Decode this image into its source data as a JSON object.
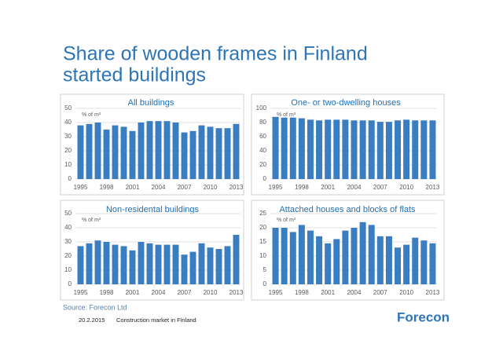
{
  "title": [
    "Share of wooden frames in Finland",
    "started buildings"
  ],
  "source": "Source: Forecon Ltd",
  "footer": {
    "date": "20.2.2015",
    "text": "Construction market in Finland",
    "logo": "Forecon"
  },
  "chart_data": [
    {
      "type": "bar",
      "title": "All buildings",
      "unit_label": "% of m³",
      "color": "#3a7dc0",
      "grid": true,
      "categories": [
        "1995",
        null,
        null,
        "1998",
        null,
        null,
        "2001",
        null,
        null,
        "2004",
        null,
        null,
        "2007",
        null,
        null,
        "2010",
        null,
        null,
        "2013"
      ],
      "values": [
        38,
        39,
        40,
        35,
        38,
        37,
        34,
        40,
        41,
        41,
        41,
        40,
        33,
        34,
        38,
        37,
        36,
        36,
        39
      ],
      "ylim": [
        0,
        50
      ],
      "yticks": [
        0,
        10,
        20,
        30,
        40,
        50
      ]
    },
    {
      "type": "bar",
      "title": "One- or two-dwelling houses",
      "unit_label": "% of m³",
      "color": "#3a7dc0",
      "grid": true,
      "categories": [
        "1995",
        null,
        null,
        "1998",
        null,
        null,
        "2001",
        null,
        null,
        "2004",
        null,
        null,
        "2007",
        null,
        null,
        "2010",
        null,
        null,
        "2013"
      ],
      "values": [
        88,
        87,
        87,
        86,
        84,
        83,
        84,
        84,
        84,
        83,
        83,
        83,
        81,
        81,
        83,
        84,
        83,
        83,
        83
      ],
      "ylim": [
        0,
        100
      ],
      "yticks": [
        0,
        20,
        40,
        60,
        80,
        100
      ]
    },
    {
      "type": "bar",
      "title": "Non-residental  buildings",
      "unit_label": "% of m³",
      "color": "#3a7dc0",
      "grid": true,
      "categories": [
        "1995",
        null,
        null,
        "1998",
        null,
        null,
        "2001",
        null,
        null,
        "2004",
        null,
        null,
        "2007",
        null,
        null,
        "2010",
        null,
        null,
        "2013"
      ],
      "values": [
        27,
        29,
        31,
        30,
        28,
        27,
        24,
        30,
        29,
        28,
        28,
        28,
        21,
        23,
        29,
        26,
        25,
        27,
        35
      ],
      "ylim": [
        0,
        50
      ],
      "yticks": [
        0,
        10,
        20,
        30,
        40,
        50
      ]
    },
    {
      "type": "bar",
      "title": "Attached houses and blocks of flats",
      "unit_label": "% of m³",
      "color": "#3a7dc0",
      "grid": true,
      "categories": [
        "1995",
        null,
        null,
        "1998",
        null,
        null,
        "2001",
        null,
        null,
        "2004",
        null,
        null,
        "2007",
        null,
        null,
        "2010",
        null,
        null,
        "2013"
      ],
      "values": [
        20,
        20,
        18.5,
        21,
        19,
        17,
        14.5,
        16,
        19,
        20,
        22,
        21,
        17,
        17,
        13,
        14,
        16.5,
        15.5,
        14.5
      ],
      "ylim": [
        0,
        25
      ],
      "yticks": [
        0,
        5,
        10,
        15,
        20,
        25
      ]
    }
  ]
}
